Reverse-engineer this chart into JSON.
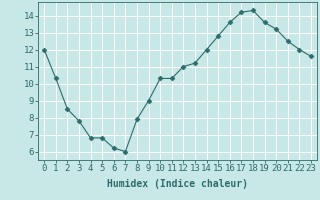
{
  "x": [
    0,
    1,
    2,
    3,
    4,
    5,
    6,
    7,
    8,
    9,
    10,
    11,
    12,
    13,
    14,
    15,
    16,
    17,
    18,
    19,
    20,
    21,
    22,
    23
  ],
  "y": [
    12.0,
    10.3,
    8.5,
    7.8,
    6.8,
    6.8,
    6.2,
    6.0,
    7.9,
    9.0,
    10.3,
    10.3,
    11.0,
    11.2,
    12.0,
    12.8,
    13.6,
    14.2,
    14.3,
    13.6,
    13.2,
    12.5,
    12.0,
    11.6
  ],
  "line_color": "#2e6b6b",
  "marker": "D",
  "marker_size": 2.5,
  "bg_color": "#c8e8e8",
  "grid_color": "#ffffff",
  "xlabel": "Humidex (Indice chaleur)",
  "ylim": [
    5.5,
    14.8
  ],
  "xlim": [
    -0.5,
    23.5
  ],
  "yticks": [
    6,
    7,
    8,
    9,
    10,
    11,
    12,
    13,
    14
  ],
  "xticks": [
    0,
    1,
    2,
    3,
    4,
    5,
    6,
    7,
    8,
    9,
    10,
    11,
    12,
    13,
    14,
    15,
    16,
    17,
    18,
    19,
    20,
    21,
    22,
    23
  ],
  "tick_color": "#2e6b6b",
  "label_color": "#2e6b6b",
  "xlabel_fontsize": 7,
  "tick_fontsize": 6.5
}
